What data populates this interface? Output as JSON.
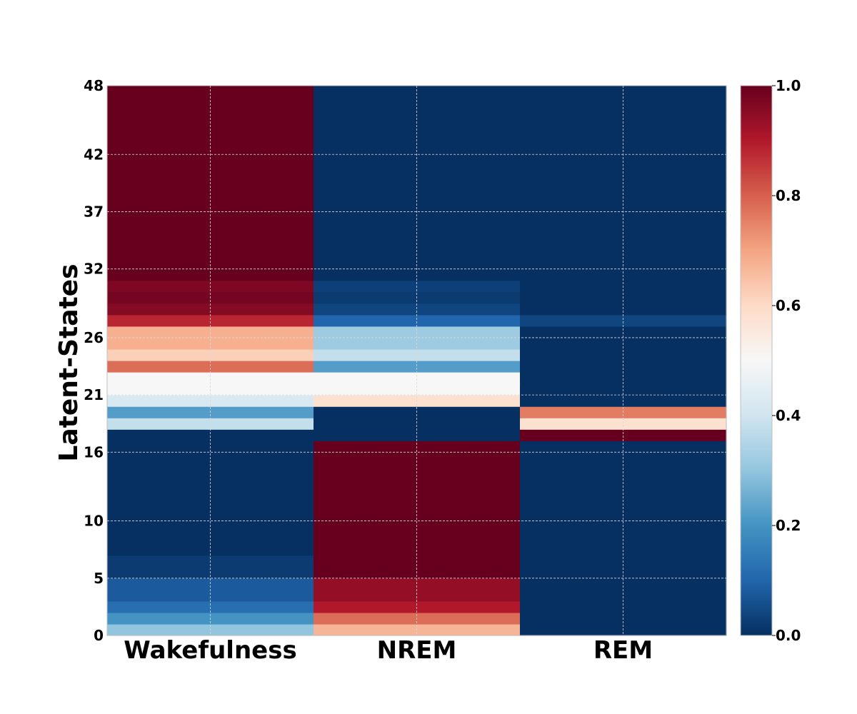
{
  "chart_data": {
    "type": "heatmap",
    "title": "",
    "xlabel": "",
    "ylabel": "Latent-States",
    "categories": [
      "Wakefulness",
      "NREM",
      "REM"
    ],
    "y_range": [
      0,
      48
    ],
    "y_ticks": [
      0,
      5,
      10,
      16,
      21,
      26,
      32,
      37,
      42,
      48
    ],
    "grid": true,
    "colormap": "RdBu_r",
    "color_range": [
      0.0,
      1.0
    ],
    "colorbar_ticks": [
      "0.0",
      "0.2",
      "0.4",
      "0.6",
      "0.8",
      "1.0"
    ],
    "rows": [
      {
        "state": 0,
        "values": [
          0.3,
          0.67,
          0.0
        ]
      },
      {
        "state": 1,
        "values": [
          0.2,
          0.78,
          0.0
        ]
      },
      {
        "state": 2,
        "values": [
          0.12,
          0.9,
          0.0
        ]
      },
      {
        "state": 3,
        "values": [
          0.08,
          0.94,
          0.0
        ]
      },
      {
        "state": 4,
        "values": [
          0.08,
          0.94,
          0.0
        ]
      },
      {
        "state": 5,
        "values": [
          0.02,
          1.0,
          0.0
        ]
      },
      {
        "state": 6,
        "values": [
          0.02,
          1.0,
          0.0
        ]
      },
      {
        "state": 7,
        "values": [
          0.0,
          1.0,
          0.0
        ]
      },
      {
        "state": 8,
        "values": [
          0.0,
          1.0,
          0.0
        ]
      },
      {
        "state": 9,
        "values": [
          0.0,
          1.0,
          0.0
        ]
      },
      {
        "state": 10,
        "values": [
          0.0,
          1.0,
          0.0
        ]
      },
      {
        "state": 11,
        "values": [
          0.0,
          1.0,
          0.0
        ]
      },
      {
        "state": 12,
        "values": [
          0.0,
          1.0,
          0.0
        ]
      },
      {
        "state": 13,
        "values": [
          0.0,
          1.0,
          0.0
        ]
      },
      {
        "state": 14,
        "values": [
          0.0,
          1.0,
          0.0
        ]
      },
      {
        "state": 15,
        "values": [
          0.0,
          1.0,
          0.0
        ]
      },
      {
        "state": 16,
        "values": [
          0.0,
          1.0,
          0.0
        ]
      },
      {
        "state": 17,
        "values": [
          0.0,
          0.0,
          1.0
        ]
      },
      {
        "state": 18,
        "values": [
          0.38,
          0.0,
          0.58
        ]
      },
      {
        "state": 19,
        "values": [
          0.22,
          0.0,
          0.76
        ]
      },
      {
        "state": 20,
        "values": [
          0.42,
          0.58,
          0.0
        ]
      },
      {
        "state": 21,
        "values": [
          0.5,
          0.5,
          0.0
        ]
      },
      {
        "state": 22,
        "values": [
          0.5,
          0.5,
          0.0
        ]
      },
      {
        "state": 23,
        "values": [
          0.78,
          0.22,
          0.0
        ]
      },
      {
        "state": 24,
        "values": [
          0.62,
          0.38,
          0.0
        ]
      },
      {
        "state": 25,
        "values": [
          0.68,
          0.32,
          0.0
        ]
      },
      {
        "state": 26,
        "values": [
          0.68,
          0.32,
          0.0
        ]
      },
      {
        "state": 27,
        "values": [
          0.88,
          0.1,
          0.04
        ]
      },
      {
        "state": 28,
        "values": [
          0.96,
          0.04,
          0.0
        ]
      },
      {
        "state": 29,
        "values": [
          0.98,
          0.02,
          0.0
        ]
      },
      {
        "state": 30,
        "values": [
          0.97,
          0.03,
          0.0
        ]
      },
      {
        "state": 31,
        "values": [
          1.0,
          0.0,
          0.0
        ]
      },
      {
        "state": 32,
        "values": [
          1.0,
          0.0,
          0.0
        ]
      },
      {
        "state": 33,
        "values": [
          1.0,
          0.0,
          0.0
        ]
      },
      {
        "state": 34,
        "values": [
          1.0,
          0.0,
          0.0
        ]
      },
      {
        "state": 35,
        "values": [
          1.0,
          0.0,
          0.0
        ]
      },
      {
        "state": 36,
        "values": [
          1.0,
          0.0,
          0.0
        ]
      },
      {
        "state": 37,
        "values": [
          1.0,
          0.0,
          0.0
        ]
      },
      {
        "state": 38,
        "values": [
          1.0,
          0.0,
          0.0
        ]
      },
      {
        "state": 39,
        "values": [
          1.0,
          0.0,
          0.0
        ]
      },
      {
        "state": 40,
        "values": [
          1.0,
          0.0,
          0.0
        ]
      },
      {
        "state": 41,
        "values": [
          1.0,
          0.0,
          0.0
        ]
      },
      {
        "state": 42,
        "values": [
          1.0,
          0.0,
          0.0
        ]
      },
      {
        "state": 43,
        "values": [
          1.0,
          0.0,
          0.0
        ]
      },
      {
        "state": 44,
        "values": [
          1.0,
          0.0,
          0.0
        ]
      },
      {
        "state": 45,
        "values": [
          1.0,
          0.0,
          0.0
        ]
      },
      {
        "state": 46,
        "values": [
          1.0,
          0.0,
          0.0
        ]
      },
      {
        "state": 47,
        "values": [
          1.0,
          0.0,
          0.0
        ]
      }
    ]
  }
}
